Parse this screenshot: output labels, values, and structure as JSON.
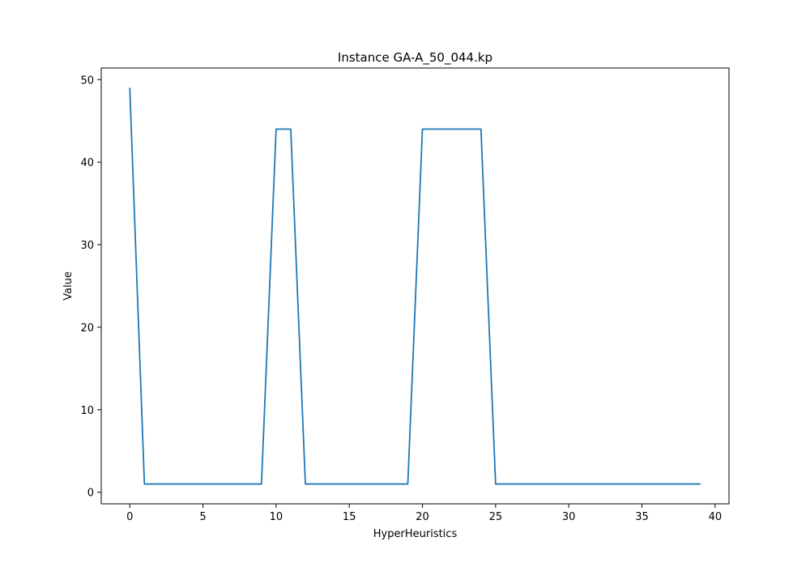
{
  "colors": {
    "background": "#ffffff",
    "axes": "#000000",
    "line": "#1f77b4"
  },
  "chart_data": {
    "type": "line",
    "title": "Instance GA-A_50_044.kp",
    "xlabel": "HyperHeuristics",
    "ylabel": "Value",
    "xlim": [
      -1.95,
      40.95
    ],
    "ylim": [
      -1.4,
      51.4
    ],
    "grid": false,
    "xticks": [
      0,
      5,
      10,
      15,
      20,
      25,
      30,
      35,
      40
    ],
    "yticks": [
      0,
      10,
      20,
      30,
      40,
      50
    ],
    "series": [
      {
        "x": [
          0,
          1,
          2,
          3,
          4,
          5,
          6,
          7,
          8,
          9,
          10,
          11,
          12,
          13,
          14,
          15,
          16,
          17,
          18,
          19,
          20,
          21,
          22,
          23,
          24,
          25,
          26,
          27,
          28,
          29,
          30,
          31,
          32,
          33,
          34,
          35,
          36,
          37,
          38,
          39
        ],
        "values": [
          49,
          1,
          1,
          1,
          1,
          1,
          1,
          1,
          1,
          1,
          44,
          44,
          1,
          1,
          1,
          1,
          1,
          1,
          1,
          1,
          44,
          44,
          44,
          44,
          44,
          1,
          1,
          1,
          1,
          1,
          1,
          1,
          1,
          1,
          1,
          1,
          1,
          1,
          1,
          1
        ]
      }
    ]
  }
}
